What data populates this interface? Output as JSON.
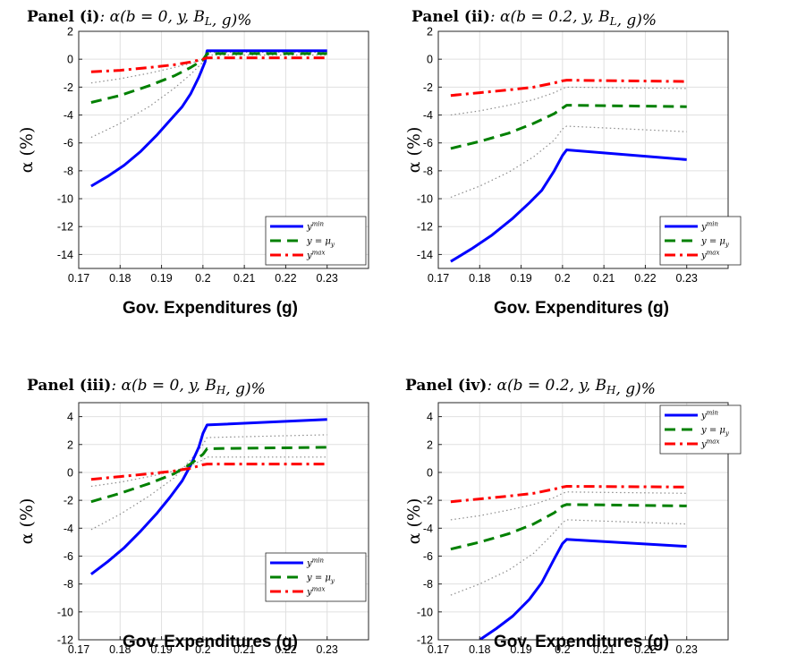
{
  "colors": {
    "ymin": "#0000ff",
    "ymean": "#008000",
    "ymax": "#ff0000",
    "band": "#8c8c8c",
    "grid": "#e0e0e0"
  },
  "chart_data": [
    {
      "type": "line",
      "panel_label": "Panel (i)",
      "title_math": ": α(b = 0, y, B_L, g)%",
      "xlabel": "Gov. Expenditures (g)",
      "ylabel": "α (%)",
      "xlim": [
        0.17,
        0.24
      ],
      "ylim": [
        -15,
        2
      ],
      "xticks": [
        0.17,
        0.18,
        0.19,
        0.2,
        0.21,
        0.22,
        0.23
      ],
      "xtick_labels": [
        "0.17",
        "0.18",
        "0.19",
        "0.2",
        "0.21",
        "0.22",
        "0.23"
      ],
      "yticks": [
        2,
        0,
        -2,
        -4,
        -6,
        -8,
        -10,
        -12,
        -14
      ],
      "ytick_labels": [
        "2",
        "0",
        "-2",
        "-4",
        "-6",
        "-8",
        "-10",
        "-12",
        "-14"
      ],
      "grid": true,
      "legend_position": "bottom-right",
      "series": [
        {
          "name": "y^min",
          "style": "solid",
          "color_key": "ymin",
          "x": [
            0.173,
            0.177,
            0.181,
            0.185,
            0.189,
            0.192,
            0.195,
            0.197,
            0.199,
            0.2005,
            0.201,
            0.23
          ],
          "y": [
            -9.1,
            -8.4,
            -7.6,
            -6.6,
            -5.4,
            -4.4,
            -3.4,
            -2.5,
            -1.3,
            -0.2,
            0.6,
            0.6
          ]
        },
        {
          "name": "y = μ_y",
          "style": "dashed",
          "color_key": "ymean",
          "x": [
            0.173,
            0.18,
            0.187,
            0.193,
            0.197,
            0.2,
            0.201,
            0.23
          ],
          "y": [
            -3.1,
            -2.6,
            -1.9,
            -1.2,
            -0.6,
            -0.05,
            0.4,
            0.4
          ]
        },
        {
          "name": "y^max",
          "style": "dashdot",
          "color_key": "ymax",
          "x": [
            0.173,
            0.18,
            0.187,
            0.193,
            0.197,
            0.2,
            0.201,
            0.23
          ],
          "y": [
            -0.9,
            -0.8,
            -0.6,
            -0.4,
            -0.2,
            0.0,
            0.1,
            0.1
          ]
        },
        {
          "style": "dotted",
          "color_key": "band",
          "x": [
            0.173,
            0.18,
            0.187,
            0.193,
            0.197,
            0.2,
            0.201,
            0.23
          ],
          "y": [
            -5.6,
            -4.6,
            -3.4,
            -2.1,
            -1.1,
            -0.2,
            0.5,
            0.5
          ]
        },
        {
          "style": "dotted",
          "color_key": "band",
          "x": [
            0.173,
            0.18,
            0.187,
            0.193,
            0.197,
            0.2,
            0.201,
            0.23
          ],
          "y": [
            -1.7,
            -1.4,
            -1.0,
            -0.6,
            -0.3,
            0.0,
            0.3,
            0.3
          ]
        }
      ],
      "legend": [
        "y^min",
        "y = μ_y",
        "y^max"
      ]
    },
    {
      "type": "line",
      "panel_label": "Panel (ii)",
      "title_math": ": α(b = 0.2, y, B_L, g)%",
      "xlabel": "Gov. Expenditures (g)",
      "ylabel": "α (%)",
      "xlim": [
        0.17,
        0.24
      ],
      "ylim": [
        -15,
        2
      ],
      "xticks": [
        0.17,
        0.18,
        0.19,
        0.2,
        0.21,
        0.22,
        0.23
      ],
      "xtick_labels": [
        "0.17",
        "0.18",
        "0.19",
        "0.2",
        "0.21",
        "0.22",
        "0.23"
      ],
      "yticks": [
        2,
        0,
        -2,
        -4,
        -6,
        -8,
        -10,
        -12,
        -14
      ],
      "ytick_labels": [
        "2",
        "0",
        "-2",
        "-4",
        "-6",
        "-8",
        "-10",
        "-12",
        "-14"
      ],
      "grid": true,
      "legend_position": "bottom-right",
      "series": [
        {
          "name": "y^min",
          "style": "solid",
          "color_key": "ymin",
          "x": [
            0.173,
            0.178,
            0.183,
            0.188,
            0.192,
            0.195,
            0.198,
            0.2,
            0.201,
            0.23
          ],
          "y": [
            -14.5,
            -13.6,
            -12.6,
            -11.4,
            -10.3,
            -9.4,
            -8.0,
            -6.9,
            -6.5,
            -7.2
          ]
        },
        {
          "name": "y = μ_y",
          "style": "dashed",
          "color_key": "ymean",
          "x": [
            0.173,
            0.18,
            0.187,
            0.193,
            0.198,
            0.2,
            0.201,
            0.23
          ],
          "y": [
            -6.4,
            -5.9,
            -5.3,
            -4.6,
            -3.9,
            -3.5,
            -3.3,
            -3.4
          ]
        },
        {
          "name": "y^max",
          "style": "dashdot",
          "color_key": "ymax",
          "x": [
            0.173,
            0.18,
            0.187,
            0.193,
            0.198,
            0.2,
            0.201,
            0.23
          ],
          "y": [
            -2.6,
            -2.4,
            -2.2,
            -2.0,
            -1.7,
            -1.55,
            -1.5,
            -1.6
          ]
        },
        {
          "style": "dotted",
          "color_key": "band",
          "x": [
            0.173,
            0.18,
            0.187,
            0.193,
            0.198,
            0.2,
            0.201,
            0.23
          ],
          "y": [
            -9.9,
            -9.1,
            -8.1,
            -7.0,
            -5.8,
            -5.0,
            -4.8,
            -5.2
          ]
        },
        {
          "style": "dotted",
          "color_key": "band",
          "x": [
            0.173,
            0.18,
            0.187,
            0.193,
            0.198,
            0.2,
            0.201,
            0.23
          ],
          "y": [
            -4.0,
            -3.7,
            -3.3,
            -2.9,
            -2.4,
            -2.1,
            -2.0,
            -2.1
          ]
        }
      ],
      "legend": [
        "y^min",
        "y = μ_y",
        "y^max"
      ]
    },
    {
      "type": "line",
      "panel_label": "Panel (iii)",
      "title_math": ": α(b = 0, y, B_H, g)%",
      "xlabel": "Gov. Expenditures (g)",
      "ylabel": "α (%)",
      "xlim": [
        0.17,
        0.24
      ],
      "ylim": [
        -12,
        5
      ],
      "xticks": [
        0.17,
        0.18,
        0.19,
        0.2,
        0.21,
        0.22,
        0.23
      ],
      "xtick_labels": [
        "0.17",
        "0.18",
        "0.19",
        "0.2",
        "0.21",
        "0.22",
        "0.23"
      ],
      "yticks": [
        4,
        2,
        0,
        -2,
        -4,
        -6,
        -8,
        -10,
        -12
      ],
      "ytick_labels": [
        "4",
        "2",
        "0",
        "-2",
        "-4",
        "-6",
        "-8",
        "-10",
        "-12"
      ],
      "grid": true,
      "legend_position": "bottom-right",
      "series": [
        {
          "name": "y^min",
          "style": "solid",
          "color_key": "ymin",
          "x": [
            0.173,
            0.177,
            0.181,
            0.185,
            0.189,
            0.192,
            0.195,
            0.197,
            0.199,
            0.2,
            0.201,
            0.23
          ],
          "y": [
            -7.3,
            -6.4,
            -5.4,
            -4.2,
            -2.9,
            -1.8,
            -0.6,
            0.5,
            1.8,
            2.8,
            3.4,
            3.8
          ]
        },
        {
          "name": "y = μ_y",
          "style": "dashed",
          "color_key": "ymean",
          "x": [
            0.173,
            0.18,
            0.187,
            0.193,
            0.197,
            0.2,
            0.201,
            0.23
          ],
          "y": [
            -2.1,
            -1.5,
            -0.8,
            -0.1,
            0.6,
            1.3,
            1.7,
            1.8
          ]
        },
        {
          "name": "y^max",
          "style": "dashdot",
          "color_key": "ymax",
          "x": [
            0.173,
            0.18,
            0.187,
            0.193,
            0.197,
            0.2,
            0.201,
            0.23
          ],
          "y": [
            -0.5,
            -0.3,
            -0.1,
            0.1,
            0.3,
            0.55,
            0.6,
            0.6
          ]
        },
        {
          "style": "dotted",
          "color_key": "band",
          "x": [
            0.173,
            0.18,
            0.187,
            0.193,
            0.197,
            0.2,
            0.201,
            0.23
          ],
          "y": [
            -4.1,
            -3.0,
            -1.7,
            -0.4,
            0.9,
            2.0,
            2.5,
            2.7
          ]
        },
        {
          "style": "dotted",
          "color_key": "band",
          "x": [
            0.173,
            0.18,
            0.187,
            0.193,
            0.197,
            0.2,
            0.201,
            0.23
          ],
          "y": [
            -1.0,
            -0.7,
            -0.3,
            0.1,
            0.5,
            0.9,
            1.1,
            1.1
          ]
        }
      ],
      "legend": [
        "y^min",
        "y = μ_y",
        "y^max"
      ]
    },
    {
      "type": "line",
      "panel_label": "Panel (iv)",
      "title_math": ": α(b = 0.2, y, B_H, g)%",
      "xlabel": "Gov. Expenditures (g)",
      "ylabel": "α (%)",
      "xlim": [
        0.17,
        0.24
      ],
      "ylim": [
        -12,
        5
      ],
      "xticks": [
        0.17,
        0.18,
        0.19,
        0.2,
        0.21,
        0.22,
        0.23
      ],
      "xtick_labels": [
        "0.17",
        "0.18",
        "0.19",
        "0.2",
        "0.21",
        "0.22",
        "0.23"
      ],
      "yticks": [
        4,
        2,
        0,
        -2,
        -4,
        -6,
        -8,
        -10,
        -12
      ],
      "ytick_labels": [
        "4",
        "2",
        "0",
        "-2",
        "-4",
        "-6",
        "-8",
        "-10",
        "-12"
      ],
      "grid": true,
      "legend_position": "top-right",
      "series": [
        {
          "name": "y^min",
          "style": "solid",
          "color_key": "ymin",
          "x": [
            0.18,
            0.184,
            0.188,
            0.192,
            0.195,
            0.198,
            0.2,
            0.201,
            0.23
          ],
          "y": [
            -12.0,
            -11.2,
            -10.3,
            -9.1,
            -7.9,
            -6.2,
            -5.1,
            -4.8,
            -5.3
          ]
        },
        {
          "name": "y = μ_y",
          "style": "dashed",
          "color_key": "ymean",
          "x": [
            0.173,
            0.18,
            0.187,
            0.193,
            0.198,
            0.2,
            0.201,
            0.23
          ],
          "y": [
            -5.5,
            -5.0,
            -4.4,
            -3.7,
            -2.9,
            -2.4,
            -2.3,
            -2.4
          ]
        },
        {
          "name": "y^max",
          "style": "dashdot",
          "color_key": "ymax",
          "x": [
            0.173,
            0.18,
            0.187,
            0.193,
            0.198,
            0.2,
            0.201,
            0.23
          ],
          "y": [
            -2.1,
            -1.9,
            -1.7,
            -1.5,
            -1.2,
            -1.05,
            -1.0,
            -1.05
          ]
        },
        {
          "style": "dotted",
          "color_key": "band",
          "x": [
            0.173,
            0.18,
            0.187,
            0.193,
            0.198,
            0.2,
            0.201,
            0.23
          ],
          "y": [
            -8.8,
            -8.0,
            -7.0,
            -5.8,
            -4.3,
            -3.6,
            -3.4,
            -3.7
          ]
        },
        {
          "style": "dotted",
          "color_key": "band",
          "x": [
            0.173,
            0.18,
            0.187,
            0.193,
            0.198,
            0.2,
            0.201,
            0.23
          ],
          "y": [
            -3.4,
            -3.1,
            -2.7,
            -2.3,
            -1.8,
            -1.5,
            -1.4,
            -1.5
          ]
        }
      ],
      "legend": [
        "y^min",
        "y = μ_y",
        "y^max"
      ]
    }
  ]
}
